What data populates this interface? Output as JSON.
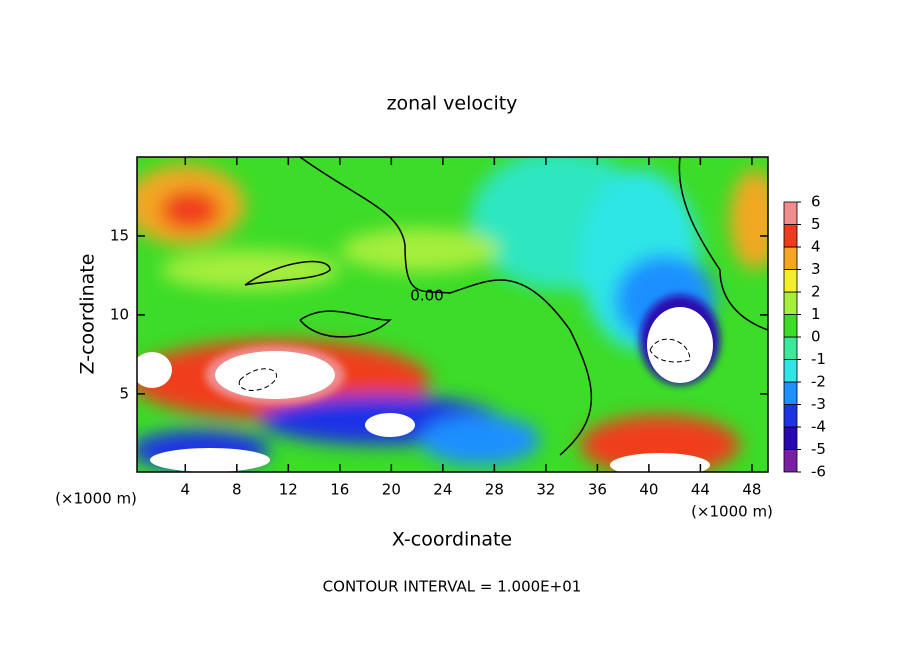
{
  "chart_data": {
    "type": "contour",
    "title": "zonal velocity",
    "x_label": "X-coordinate",
    "y_label": "Z-coordinate",
    "x_unit": "(×1000 m)",
    "y_unit": "(×1000 m)",
    "footer": "CONTOUR INTERVAL = 1.000E+01",
    "contour_label": "0.00",
    "xlim": [
      0.25,
      49.25
    ],
    "ylim": [
      0.05,
      20
    ],
    "xticks": [
      4,
      8,
      12,
      16,
      20,
      24,
      28,
      32,
      36,
      40,
      44,
      48
    ],
    "yticks": [
      5,
      10,
      15
    ],
    "colorbar": {
      "levels": [
        -6,
        -5,
        -4,
        -3,
        -2,
        -1,
        0,
        1,
        2,
        3,
        4,
        5,
        6
      ],
      "colors": [
        "#7b1fa2",
        "#2a0ab0",
        "#1e32e6",
        "#1e90ff",
        "#2ee6e6",
        "#3ee89a",
        "#3cdc28",
        "#a6ee3c",
        "#f2f028",
        "#f2a824",
        "#f03c1e",
        "#f08c8c"
      ]
    }
  }
}
